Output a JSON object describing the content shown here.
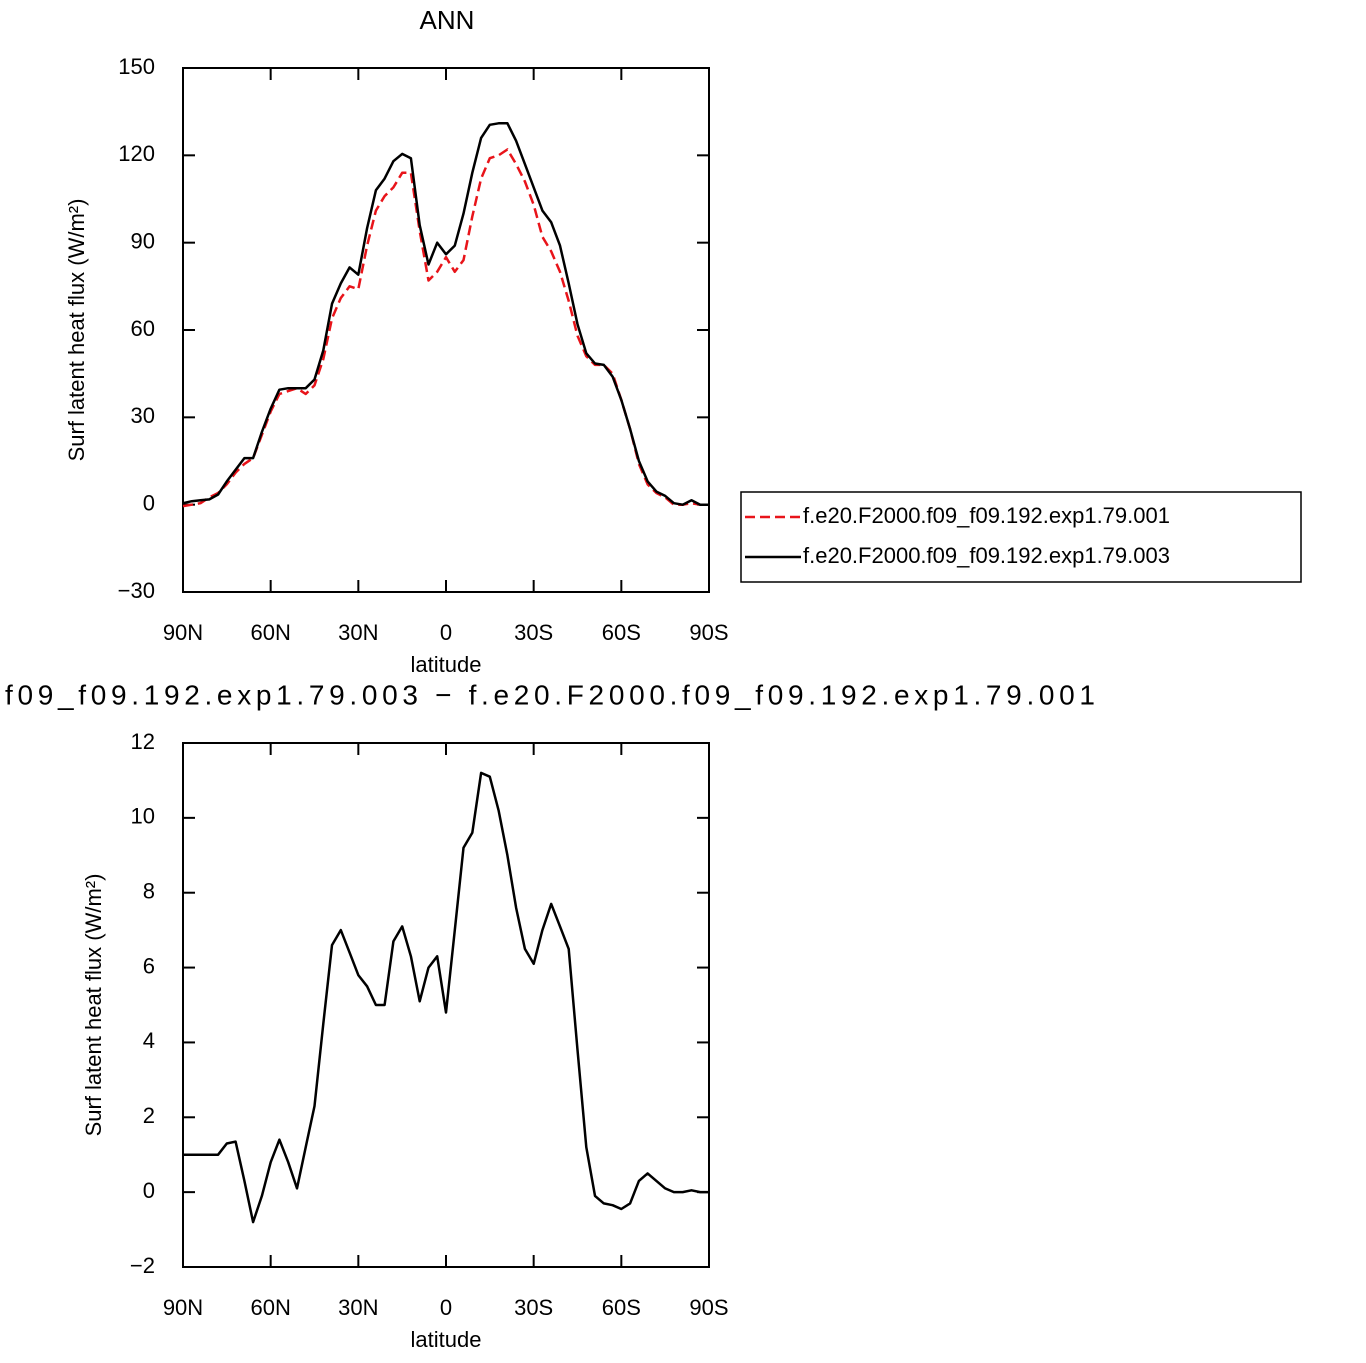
{
  "chart_data": [
    {
      "type": "line",
      "title": "ANN",
      "xlabel": "latitude",
      "ylabel": "Surf latent heat flux (W/m²)",
      "x": [
        90,
        87,
        84,
        81,
        78,
        75,
        72,
        69,
        66,
        63,
        60,
        57,
        54,
        51,
        48,
        45,
        42,
        39,
        36,
        33,
        30,
        27,
        24,
        21,
        18,
        15,
        12,
        9,
        6,
        3,
        0,
        -3,
        -6,
        -9,
        -12,
        -15,
        -18,
        -21,
        -24,
        -27,
        -30,
        -33,
        -36,
        -39,
        -42,
        -45,
        -48,
        -51,
        -54,
        -57,
        -60,
        -63,
        -66,
        -69,
        -72,
        -75,
        -78,
        -81,
        -84,
        -87,
        -90
      ],
      "series": [
        {
          "name": "f.e20.F2000.f09_f09.192.exp1.79.001",
          "color": "#e8141a",
          "line_style": "dashed",
          "values": [
            -0.5,
            0,
            0.5,
            2.5,
            4,
            7,
            11,
            14,
            16,
            24,
            32,
            38,
            39,
            40,
            38,
            41,
            50,
            64,
            71,
            75,
            74,
            89,
            101,
            106,
            109,
            114,
            114,
            94,
            77,
            80,
            85,
            80,
            84,
            99,
            112,
            119,
            120,
            122,
            117,
            111,
            103,
            92,
            87,
            80,
            70,
            58,
            51,
            48,
            48,
            45,
            36,
            26,
            14,
            7,
            4,
            2.5,
            0,
            0,
            0.5,
            0,
            0
          ]
        },
        {
          "name": "f.e20.F2000.f09_f09.192.exp1.79.003",
          "color": "#000000",
          "line_style": "solid",
          "values": [
            0.5,
            1.2,
            1.5,
            1.8,
            3.5,
            8,
            12,
            16,
            16,
            25,
            33,
            39.5,
            40,
            40,
            40,
            43,
            53,
            69,
            76,
            81.5,
            79,
            95,
            108,
            112,
            118,
            120.5,
            119,
            96,
            82.5,
            90,
            86,
            89,
            100,
            114,
            126,
            130.5,
            131,
            131,
            125,
            117,
            109,
            101,
            97,
            89,
            76,
            62,
            52,
            48.5,
            48,
            44,
            36,
            26,
            15,
            8,
            4.5,
            3,
            0.5,
            0,
            1.5,
            0,
            0
          ]
        }
      ],
      "xlim": [
        90,
        -90
      ],
      "xticks": [
        {
          "value": 90,
          "label": "90N"
        },
        {
          "value": 60,
          "label": "60N"
        },
        {
          "value": 30,
          "label": "30N"
        },
        0,
        {
          "value": -30,
          "label": "30S"
        },
        {
          "value": -60,
          "label": "60S"
        },
        {
          "value": -90,
          "label": "90S"
        }
      ],
      "ylim": [
        -30,
        150
      ],
      "yticks": [
        {
          "value": -30,
          "label": "−30"
        },
        0,
        30,
        60,
        90,
        120,
        150
      ],
      "legend": "right"
    },
    {
      "type": "line",
      "title": "f09_f09.192.exp1.79.003 − f.e20.F2000.f09_f09.192.exp1.79.001",
      "xlabel": "latitude",
      "ylabel": "Surf latent heat flux (W/m²)",
      "x": [
        90,
        87,
        84,
        81,
        78,
        75,
        72,
        69,
        66,
        63,
        60,
        57,
        54,
        51,
        48,
        45,
        42,
        39,
        36,
        33,
        30,
        27,
        24,
        21,
        18,
        15,
        12,
        9,
        6,
        3,
        0,
        -3,
        -6,
        -9,
        -12,
        -15,
        -18,
        -21,
        -24,
        -27,
        -30,
        -33,
        -36,
        -39,
        -42,
        -45,
        -48,
        -51,
        -54,
        -57,
        -60,
        -63,
        -66,
        -69,
        -72,
        -75,
        -78,
        -81,
        -84,
        -87,
        -90
      ],
      "series": [
        {
          "color": "#000000",
          "line_style": "solid",
          "values": [
            1.0,
            1.0,
            1.0,
            1.0,
            1.0,
            1.3,
            1.35,
            0.3,
            -0.8,
            -0.1,
            0.8,
            1.4,
            0.8,
            0.1,
            1.2,
            2.3,
            4.5,
            6.6,
            7.0,
            6.4,
            5.8,
            5.5,
            5.0,
            5.0,
            6.7,
            7.1,
            6.3,
            5.1,
            6.0,
            6.3,
            4.8,
            7.0,
            9.2,
            9.6,
            11.2,
            11.1,
            10.2,
            9.0,
            7.6,
            6.5,
            6.1,
            7.0,
            7.7,
            7.1,
            6.5,
            3.8,
            1.2,
            -0.1,
            -0.3,
            -0.35,
            -0.45,
            -0.3,
            0.3,
            0.5,
            0.3,
            0.1,
            0,
            0,
            0.05,
            0,
            0
          ]
        }
      ],
      "xlim": [
        90,
        -90
      ],
      "xticks": [
        {
          "value": 90,
          "label": "90N"
        },
        {
          "value": 60,
          "label": "60N"
        },
        {
          "value": 30,
          "label": "30N"
        },
        0,
        {
          "value": -30,
          "label": "30S"
        },
        {
          "value": -60,
          "label": "60S"
        },
        {
          "value": -90,
          "label": "90S"
        }
      ],
      "ylim": [
        -2,
        12
      ],
      "yticks": [
        {
          "value": -2,
          "label": "−2"
        },
        0,
        2,
        4,
        6,
        8,
        10,
        12
      ]
    }
  ]
}
